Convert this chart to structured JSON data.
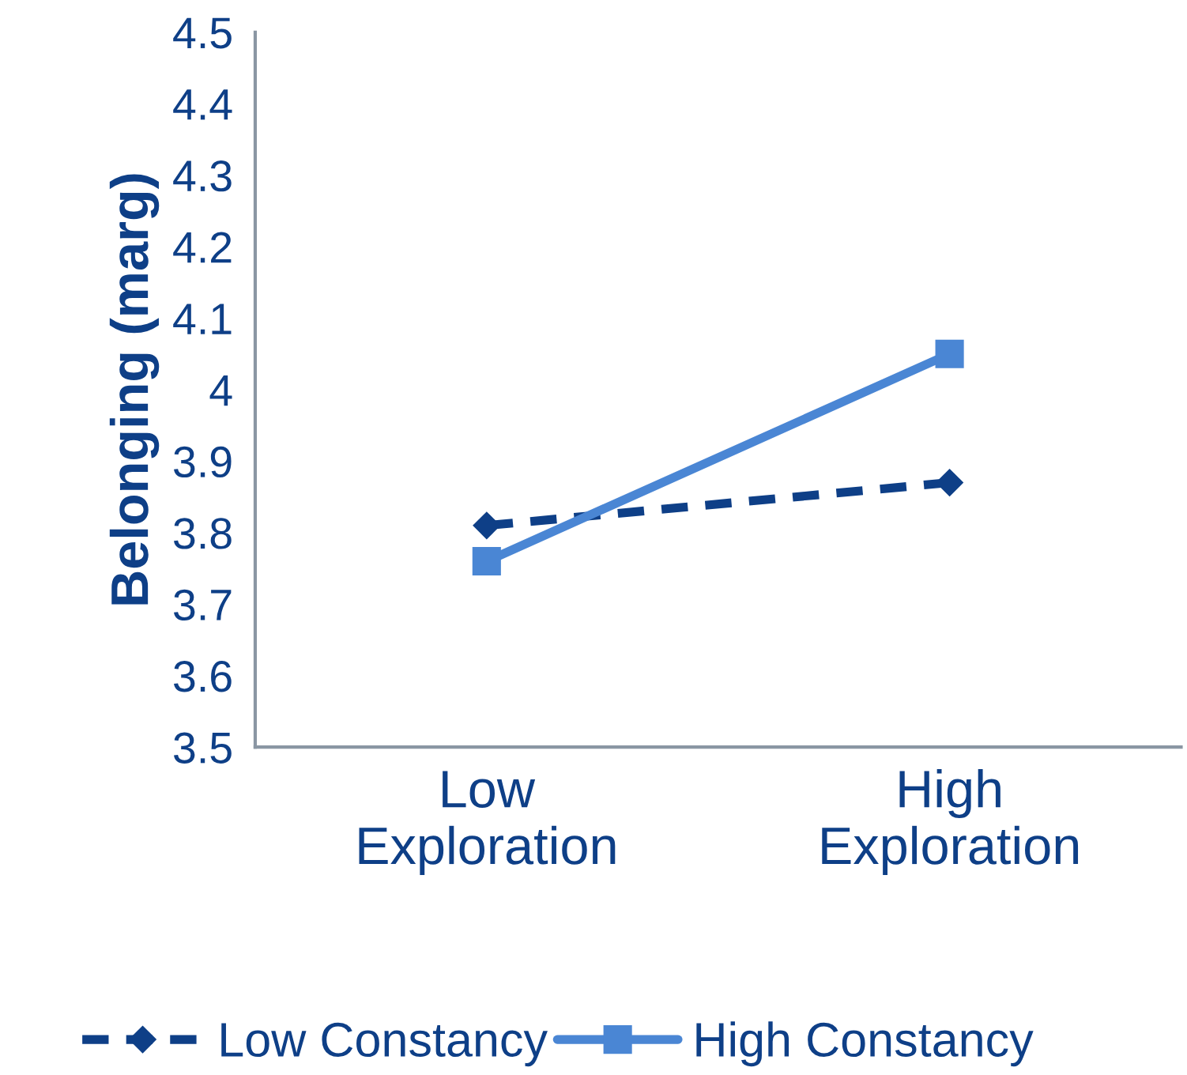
{
  "chart_data": {
    "type": "line",
    "ylabel": "Belonging (marg)",
    "categories": [
      "Low\nExploration",
      "High\nExploration"
    ],
    "series": [
      {
        "name": "Low Constancy",
        "color": "#0e3f87",
        "values": [
          3.81,
          3.87
        ],
        "marker": "diamond",
        "line_style": "dashed"
      },
      {
        "name": "High Constancy",
        "color": "#4a86d4",
        "values": [
          3.76,
          4.05
        ],
        "marker": "square",
        "line_style": "solid"
      }
    ],
    "ylim": [
      3.5,
      4.5
    ],
    "yticks": [
      3.5,
      3.6,
      3.7,
      3.8,
      3.9,
      4,
      4.1,
      4.2,
      4.3,
      4.4,
      4.5
    ],
    "grid": false,
    "legend": "bottom"
  }
}
